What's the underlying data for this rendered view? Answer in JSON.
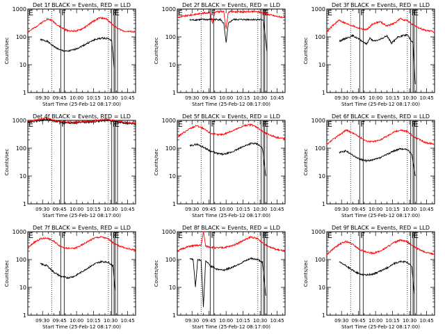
{
  "figure": {
    "start_time_label": "Start Time (25-Feb-12 08:17:00)",
    "ylabel": "Counts/sec",
    "y_tick_labels": [
      "1",
      "10",
      "100",
      "1000"
    ],
    "x_tick_labels": [
      "09:30",
      "09:45",
      "10:00",
      "10:15",
      "10:30",
      "10:45"
    ],
    "colors": {
      "events": "#000000",
      "lld": "#ff0000",
      "frame": "#000000"
    }
  },
  "chart_data": [
    {
      "type": "line",
      "panel": "1f",
      "title": "Det 1f BLACK = Events, RED = LLD",
      "xlabel": "Start Time (25-Feb-12 08:17:00)",
      "ylabel": "Counts/sec",
      "yscale": "log",
      "ylim": [
        1,
        1000
      ],
      "xlim": [
        "09:17",
        "10:52"
      ],
      "grid": false,
      "dotted_marks": [
        "09:38",
        "10:28"
      ],
      "markers": [
        {
          "label": "E",
          "at": "09:17"
        },
        {
          "label": "F",
          "at": "09:46"
        },
        {
          "label": "F",
          "at": "10:31"
        },
        {
          "label": "E",
          "at": "10:33"
        }
      ],
      "series": [
        {
          "name": "BLACK = Events",
          "color": "#000000",
          "x": [
            "09:28",
            "09:34",
            "09:40",
            "09:46",
            "09:52",
            "09:58",
            "10:04",
            "10:10",
            "10:16",
            "10:22",
            "10:28",
            "10:31",
            "10:33"
          ],
          "values": [
            80,
            70,
            45,
            33,
            30,
            35,
            45,
            60,
            80,
            90,
            88,
            70,
            8
          ]
        },
        {
          "name": "RED = LLD",
          "color": "#ff0000",
          "x": [
            "09:17",
            "09:22",
            "09:28",
            "09:34",
            "09:38",
            "09:44",
            "09:50",
            "09:56",
            "10:02",
            "10:08",
            "10:14",
            "10:20",
            "10:26",
            "10:30",
            "10:36",
            "10:42",
            "10:52"
          ],
          "values": [
            150,
            200,
            300,
            440,
            400,
            250,
            180,
            160,
            170,
            230,
            350,
            480,
            450,
            320,
            200,
            160,
            150
          ]
        }
      ]
    },
    {
      "type": "line",
      "panel": "2f",
      "title": "Det 2f BLACK = Events, RED = LLD",
      "xlabel": "Start Time (25-Feb-12 08:17:00)",
      "ylabel": "Counts/sec",
      "yscale": "log",
      "ylim": [
        1,
        1000
      ],
      "xlim": [
        "09:17",
        "10:52"
      ],
      "grid": false,
      "dotted_marks": [
        "09:38",
        "10:28"
      ],
      "markers": [
        {
          "label": "E",
          "at": "09:17"
        },
        {
          "label": "F",
          "at": "09:46"
        },
        {
          "label": "F",
          "at": "10:31"
        },
        {
          "label": "E",
          "at": "10:33"
        }
      ],
      "series": [
        {
          "name": "BLACK = Events",
          "color": "#000000",
          "x": [
            "09:28",
            "09:38",
            "09:48",
            "09:55",
            "09:58",
            "10:00",
            "10:02",
            "10:06",
            "10:15",
            "10:25",
            "10:33",
            "10:36"
          ],
          "values": [
            400,
            420,
            420,
            420,
            300,
            60,
            300,
            420,
            420,
            420,
            410,
            30
          ]
        },
        {
          "name": "RED = LLD",
          "color": "#ff0000",
          "x": [
            "09:17",
            "09:28",
            "09:38",
            "09:46",
            "09:48",
            "09:50",
            "09:52",
            "09:58",
            "10:00",
            "10:02",
            "10:08",
            "10:18",
            "10:28",
            "10:34",
            "10:44",
            "10:52"
          ],
          "values": [
            500,
            600,
            700,
            750,
            300,
            750,
            800,
            800,
            200,
            800,
            800,
            800,
            800,
            700,
            550,
            500
          ]
        }
      ]
    },
    {
      "type": "line",
      "panel": "3f",
      "title": "Det 3f BLACK = Events, RED = LLD",
      "xlabel": "Start Time (25-Feb-12 08:17:00)",
      "ylabel": "Counts/sec",
      "yscale": "log",
      "ylim": [
        1,
        1000
      ],
      "xlim": [
        "09:17",
        "10:52"
      ],
      "grid": false,
      "dotted_marks": [
        "09:38",
        "10:28"
      ],
      "markers": [
        {
          "label": "E",
          "at": "09:17"
        },
        {
          "label": "F",
          "at": "09:46"
        },
        {
          "label": "F",
          "at": "10:31"
        },
        {
          "label": "E",
          "at": "10:33"
        }
      ],
      "series": [
        {
          "name": "BLACK = Events",
          "color": "#000000",
          "x": [
            "09:28",
            "09:34",
            "09:40",
            "09:46",
            "09:52",
            "09:55",
            "09:58",
            "10:04",
            "10:10",
            "10:14",
            "10:20",
            "10:28",
            "10:33",
            "10:35"
          ],
          "values": [
            70,
            90,
            110,
            80,
            55,
            90,
            70,
            80,
            110,
            60,
            100,
            120,
            60,
            2
          ]
        },
        {
          "name": "RED = LLD",
          "color": "#ff0000",
          "x": [
            "09:17",
            "09:22",
            "09:28",
            "09:34",
            "09:40",
            "09:46",
            "09:52",
            "09:58",
            "10:04",
            "10:10",
            "10:16",
            "10:22",
            "10:28",
            "10:34",
            "10:42",
            "10:52"
          ],
          "values": [
            150,
            250,
            400,
            300,
            250,
            200,
            180,
            300,
            350,
            250,
            300,
            450,
            380,
            250,
            180,
            150
          ]
        }
      ]
    },
    {
      "type": "line",
      "panel": "4f",
      "title": "Det 4f BLACK = Events, RED = LLD",
      "xlabel": "Start Time (25-Feb-12 08:17:00)",
      "ylabel": "Counts/sec",
      "yscale": "log",
      "ylim": [
        1,
        1000
      ],
      "xlim": [
        "09:17",
        "10:52"
      ],
      "grid": false,
      "dotted_marks": [
        "09:38",
        "10:28"
      ],
      "markers": [
        {
          "label": "E",
          "at": "09:17"
        },
        {
          "label": "F",
          "at": "09:46"
        },
        {
          "label": "F",
          "at": "10:31"
        },
        {
          "label": "E",
          "at": "10:33"
        }
      ],
      "series": [
        {
          "name": "BLACK = Events",
          "color": "#000000",
          "x": [
            "09:17",
            "09:28",
            "09:34",
            "09:40",
            "09:46",
            "09:56",
            "10:06",
            "10:16",
            "10:26",
            "10:32",
            "10:42",
            "10:52"
          ],
          "values": [
            850,
            1000,
            1100,
            950,
            850,
            800,
            850,
            900,
            1000,
            950,
            800,
            750
          ]
        },
        {
          "name": "RED = LLD",
          "color": "#ff0000",
          "x": [
            "09:17",
            "09:28",
            "09:34",
            "09:40",
            "09:46",
            "09:56",
            "10:06",
            "10:16",
            "10:26",
            "10:32",
            "10:42",
            "10:52"
          ],
          "values": [
            900,
            1100,
            1200,
            1000,
            900,
            850,
            900,
            1000,
            1100,
            1000,
            850,
            800
          ]
        }
      ]
    },
    {
      "type": "line",
      "panel": "5f",
      "title": "Det 5f BLACK = Events, RED = LLD",
      "xlabel": "Start Time (25-Feb-12 08:17:00)",
      "ylabel": "Counts/sec",
      "yscale": "log",
      "ylim": [
        1,
        1000
      ],
      "xlim": [
        "09:17",
        "10:52"
      ],
      "grid": false,
      "dotted_marks": [
        "09:38",
        "10:28"
      ],
      "markers": [
        {
          "label": "E",
          "at": "09:17"
        },
        {
          "label": "F",
          "at": "09:46"
        },
        {
          "label": "F",
          "at": "10:31"
        },
        {
          "label": "E",
          "at": "10:33"
        }
      ],
      "series": [
        {
          "name": "BLACK = Events",
          "color": "#000000",
          "x": [
            "09:28",
            "09:34",
            "09:40",
            "09:46",
            "09:52",
            "09:58",
            "10:04",
            "10:10",
            "10:16",
            "10:22",
            "10:28",
            "10:32",
            "10:35"
          ],
          "values": [
            120,
            140,
            110,
            80,
            65,
            60,
            70,
            90,
            120,
            150,
            140,
            100,
            10
          ]
        },
        {
          "name": "RED = LLD",
          "color": "#ff0000",
          "x": [
            "09:17",
            "09:22",
            "09:28",
            "09:34",
            "09:40",
            "09:46",
            "09:52",
            "09:58",
            "10:04",
            "10:10",
            "10:16",
            "10:22",
            "10:28",
            "10:34",
            "10:44",
            "10:52"
          ],
          "values": [
            250,
            350,
            500,
            650,
            500,
            350,
            300,
            320,
            400,
            500,
            650,
            700,
            550,
            350,
            250,
            220
          ]
        }
      ]
    },
    {
      "type": "line",
      "panel": "6f",
      "title": "Det 6f BLACK = Events, RED = LLD",
      "xlabel": "Start Time (25-Feb-12 08:17:00)",
      "ylabel": "Counts/sec",
      "yscale": "log",
      "ylim": [
        1,
        1000
      ],
      "xlim": [
        "09:17",
        "10:52"
      ],
      "grid": false,
      "dotted_marks": [
        "09:38",
        "10:28"
      ],
      "markers": [
        {
          "label": "E",
          "at": "09:17"
        },
        {
          "label": "F",
          "at": "09:46"
        },
        {
          "label": "F",
          "at": "10:31"
        },
        {
          "label": "E",
          "at": "10:33"
        }
      ],
      "series": [
        {
          "name": "BLACK = Events",
          "color": "#000000",
          "x": [
            "09:28",
            "09:34",
            "09:40",
            "09:46",
            "09:52",
            "09:58",
            "10:04",
            "10:10",
            "10:16",
            "10:22",
            "10:28",
            "10:32",
            "10:35"
          ],
          "values": [
            70,
            80,
            55,
            40,
            35,
            38,
            45,
            60,
            80,
            95,
            90,
            60,
            10
          ]
        },
        {
          "name": "RED = LLD",
          "color": "#ff0000",
          "x": [
            "09:17",
            "09:22",
            "09:28",
            "09:34",
            "09:40",
            "09:46",
            "09:52",
            "09:58",
            "10:04",
            "10:10",
            "10:16",
            "10:22",
            "10:28",
            "10:34",
            "10:44",
            "10:52"
          ],
          "values": [
            130,
            200,
            300,
            450,
            350,
            250,
            180,
            170,
            200,
            270,
            380,
            450,
            400,
            250,
            160,
            140
          ]
        }
      ]
    },
    {
      "type": "line",
      "panel": "7f",
      "title": "Det 7f BLACK = Events, RED = LLD",
      "xlabel": "Start Time (25-Feb-12 08:17:00)",
      "ylabel": "Counts/sec",
      "yscale": "log",
      "ylim": [
        1,
        1000
      ],
      "xlim": [
        "09:17",
        "10:52"
      ],
      "grid": false,
      "dotted_marks": [
        "09:38",
        "10:28"
      ],
      "markers": [
        {
          "label": "E",
          "at": "09:17"
        },
        {
          "label": "F",
          "at": "09:46"
        },
        {
          "label": "F",
          "at": "10:31"
        },
        {
          "label": "E",
          "at": "10:33"
        }
      ],
      "series": [
        {
          "name": "BLACK = Events",
          "color": "#000000",
          "x": [
            "09:28",
            "09:34",
            "09:40",
            "09:46",
            "09:52",
            "09:58",
            "10:04",
            "10:10",
            "10:16",
            "10:22",
            "10:28",
            "10:32",
            "10:34"
          ],
          "values": [
            70,
            60,
            35,
            25,
            22,
            25,
            35,
            50,
            70,
            85,
            80,
            60,
            8
          ]
        },
        {
          "name": "RED = LLD",
          "color": "#ff0000",
          "x": [
            "09:17",
            "09:22",
            "09:28",
            "09:34",
            "09:40",
            "09:46",
            "09:52",
            "09:58",
            "10:04",
            "10:10",
            "10:16",
            "10:22",
            "10:28",
            "10:34",
            "10:44",
            "10:52"
          ],
          "values": [
            250,
            400,
            550,
            600,
            450,
            300,
            250,
            250,
            320,
            450,
            600,
            650,
            550,
            350,
            250,
            220
          ]
        }
      ]
    },
    {
      "type": "line",
      "panel": "8f",
      "title": "Det 8f BLACK = Events, RED = LLD",
      "xlabel": "Start Time (25-Feb-12 08:17:00)",
      "ylabel": "Counts/sec",
      "yscale": "log",
      "ylim": [
        1,
        1000
      ],
      "xlim": [
        "09:17",
        "10:52"
      ],
      "grid": false,
      "dotted_marks": [
        "09:38",
        "10:28"
      ],
      "markers": [
        {
          "label": "E",
          "at": "09:17"
        },
        {
          "label": "F",
          "at": "09:46"
        },
        {
          "label": "F",
          "at": "10:31"
        },
        {
          "label": "E",
          "at": "10:33"
        }
      ],
      "series": [
        {
          "name": "BLACK = Events",
          "color": "#000000",
          "x": [
            "09:28",
            "09:31",
            "09:33",
            "09:35",
            "09:38",
            "09:40",
            "09:42",
            "09:46",
            "09:52",
            "09:58",
            "10:04",
            "10:10",
            "10:16",
            "10:22",
            "10:28",
            "10:32",
            "10:35"
          ],
          "values": [
            110,
            100,
            10,
            100,
            95,
            2,
            90,
            60,
            45,
            42,
            50,
            65,
            85,
            110,
            100,
            80,
            5
          ]
        },
        {
          "name": "RED = LLD",
          "color": "#ff0000",
          "x": [
            "09:17",
            "09:22",
            "09:28",
            "09:34",
            "09:38",
            "09:40",
            "09:42",
            "09:46",
            "09:52",
            "09:58",
            "10:04",
            "10:10",
            "10:16",
            "10:22",
            "10:28",
            "10:34",
            "10:44",
            "10:52"
          ],
          "values": [
            200,
            250,
            300,
            320,
            320,
            1000,
            300,
            280,
            260,
            270,
            300,
            380,
            500,
            650,
            550,
            350,
            230,
            200
          ]
        }
      ]
    },
    {
      "type": "line",
      "panel": "9f",
      "title": "Det 9f BLACK = Events, RED = LLD",
      "xlabel": "Start Time (25-Feb-12 08:17:00)",
      "ylabel": "Counts/sec",
      "yscale": "log",
      "ylim": [
        1,
        1000
      ],
      "xlim": [
        "09:17",
        "10:52"
      ],
      "grid": false,
      "dotted_marks": [
        "09:38",
        "10:28"
      ],
      "markers": [
        {
          "label": "E",
          "at": "09:17"
        },
        {
          "label": "F",
          "at": "09:46"
        },
        {
          "label": "F",
          "at": "10:31"
        },
        {
          "label": "E",
          "at": "10:33"
        }
      ],
      "series": [
        {
          "name": "BLACK = Events",
          "color": "#000000",
          "x": [
            "09:28",
            "09:34",
            "09:40",
            "09:46",
            "09:52",
            "09:58",
            "10:04",
            "10:10",
            "10:16",
            "10:22",
            "10:28",
            "10:32",
            "10:34"
          ],
          "values": [
            80,
            60,
            40,
            30,
            28,
            30,
            38,
            50,
            70,
            85,
            80,
            55,
            6
          ]
        },
        {
          "name": "RED = LLD",
          "color": "#ff0000",
          "x": [
            "09:17",
            "09:22",
            "09:28",
            "09:34",
            "09:40",
            "09:46",
            "09:52",
            "09:58",
            "10:04",
            "10:10",
            "10:16",
            "10:22",
            "10:28",
            "10:34",
            "10:44",
            "10:52"
          ],
          "values": [
            150,
            230,
            350,
            450,
            350,
            230,
            180,
            170,
            200,
            280,
            400,
            500,
            430,
            280,
            180,
            160
          ]
        }
      ]
    }
  ]
}
